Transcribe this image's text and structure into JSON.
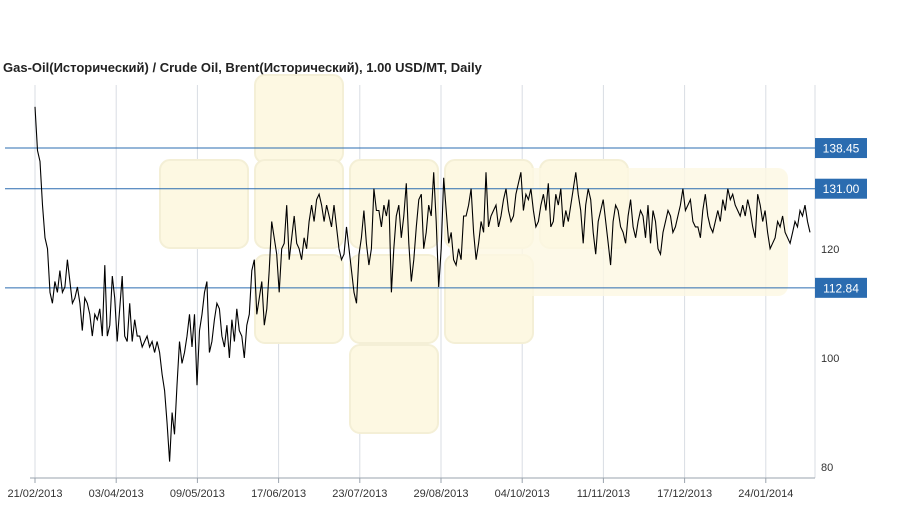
{
  "chart_data": {
    "type": "line",
    "title": "Gas-Oil(Исторический) / Crude Oil, Brent(Исторический), 1.00 USD/MT, Daily",
    "x_ticks": [
      "21/02/2013",
      "03/04/2013",
      "09/05/2013",
      "17/06/2013",
      "23/07/2013",
      "29/08/2013",
      "04/10/2013",
      "11/11/2013",
      "17/12/2013",
      "24/01/2014"
    ],
    "y_ticks": [
      80,
      100,
      120
    ],
    "ylim": [
      78,
      150
    ],
    "grid": true,
    "series": [
      {
        "values": [
          146,
          138,
          136,
          128,
          122,
          120,
          112,
          110,
          114,
          112,
          116,
          112,
          113,
          118,
          114,
          110,
          111,
          113,
          110,
          105,
          111,
          110,
          108,
          104,
          108,
          107,
          109,
          104,
          117,
          104,
          106,
          115,
          111,
          103,
          109,
          115,
          104,
          103,
          110,
          103,
          107,
          104,
          104,
          102,
          103,
          104,
          102,
          103,
          101,
          103,
          101,
          97,
          94,
          88,
          81,
          90,
          86,
          95,
          103,
          99,
          101,
          104,
          108,
          102,
          108,
          95,
          105,
          108,
          112,
          114,
          101,
          103,
          107,
          110,
          109,
          104,
          102,
          106,
          100,
          107,
          103,
          109,
          105,
          104,
          100,
          106,
          108,
          116,
          118,
          108,
          111,
          114,
          106,
          109,
          116,
          125,
          122,
          119,
          112,
          120,
          121,
          128,
          118,
          122,
          126,
          121,
          120,
          118,
          122,
          120,
          125,
          128,
          125,
          129,
          130,
          128,
          125,
          128,
          126,
          124,
          128,
          124,
          120,
          118,
          119,
          124,
          120,
          116,
          112,
          110,
          119,
          122,
          127,
          121,
          117,
          120,
          131,
          127,
          127,
          124,
          128,
          126,
          129,
          112,
          120,
          126,
          128,
          122,
          126,
          132,
          121,
          114,
          118,
          124,
          129,
          130,
          120,
          123,
          128,
          126,
          134,
          125,
          113,
          120,
          133,
          127,
          121,
          123,
          118,
          117,
          120,
          118,
          126,
          126,
          128,
          131,
          123,
          118,
          121,
          125,
          123,
          134,
          124,
          126,
          127,
          128,
          124,
          126,
          129,
          131,
          127,
          125,
          126,
          130,
          132,
          134,
          127,
          130,
          129,
          131,
          127,
          124,
          125,
          128,
          130,
          127,
          132,
          124,
          125,
          130,
          128,
          131,
          124,
          127,
          125,
          128,
          131,
          134,
          130,
          127,
          121,
          128,
          131,
          129,
          123,
          119,
          125,
          127,
          129,
          125,
          121,
          117,
          125,
          128,
          127,
          124,
          123,
          121,
          126,
          129,
          124,
          122,
          125,
          127,
          126,
          122,
          128,
          121,
          127,
          125,
          120,
          119,
          123,
          125,
          127,
          126,
          123,
          124,
          126,
          128,
          131,
          127,
          128,
          129,
          125,
          124,
          124,
          122,
          127,
          130,
          126,
          124,
          123,
          125,
          127,
          125,
          129,
          127,
          131,
          129,
          130,
          128,
          127,
          126,
          128,
          126,
          129,
          127,
          124,
          122,
          130,
          128,
          125,
          127,
          123,
          120,
          121,
          122,
          125,
          124,
          126,
          123,
          122,
          121,
          123,
          125,
          124,
          127,
          126,
          128,
          125,
          123
        ],
        "note_x_start": "21/02/2013"
      }
    ],
    "levels": [
      {
        "label": "138.45",
        "value": 138.45
      },
      {
        "label": "131.00",
        "value": 131.0
      },
      {
        "label": "112.84",
        "value": 112.84
      }
    ],
    "colors": {
      "line": "#000000",
      "level": "#2b6cb0",
      "label_bg": "#2b6cb0",
      "grid": "#d9dde3",
      "axis": "#9aa3ad"
    }
  }
}
